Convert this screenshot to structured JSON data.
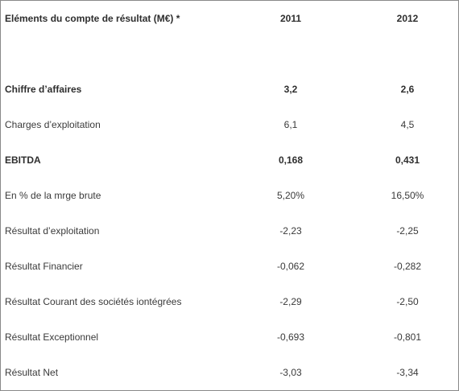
{
  "table": {
    "header": {
      "label": "Eléments du compte de résultat (M€) *",
      "col_2011": "2011",
      "col_2012": "2012"
    },
    "rows": [
      {
        "label": "Chiffre d’affaires",
        "v2011": "3,2",
        "v2012": "2,6",
        "bold": true
      },
      {
        "label": "Charges d’exploitation",
        "v2011": "6,1",
        "v2012": "4,5",
        "bold": false
      },
      {
        "label": "EBITDA",
        "v2011": "0,168",
        "v2012": "0,431",
        "bold": true
      },
      {
        "label": "En % de la mrge brute",
        "v2011": "5,20%",
        "v2012": "16,50%",
        "bold": false
      },
      {
        "label": "Résultat d’exploitation",
        "v2011": "-2,23",
        "v2012": "-2,25",
        "bold": false
      },
      {
        "label": "Résultat Financier",
        "v2011": "-0,062",
        "v2012": "-0,282",
        "bold": false
      },
      {
        "label": "Résultat Courant des sociétés iontégrées",
        "v2011": "-2,29",
        "v2012": "-2,50",
        "bold": false
      },
      {
        "label": "Résultat Exceptionnel",
        "v2011": "-0,693",
        "v2012": "-0,801",
        "bold": false
      },
      {
        "label": "Résultat Net",
        "v2011": "-3,03",
        "v2012": "-3,34",
        "bold": false
      }
    ]
  }
}
